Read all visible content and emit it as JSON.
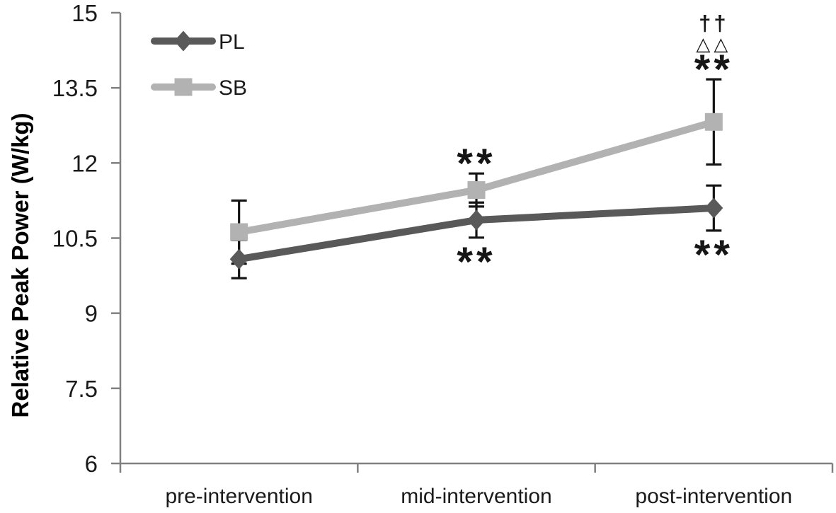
{
  "chart_data": {
    "type": "line",
    "title": "",
    "xlabel": "",
    "ylabel": "Relative Peak Power (W/kg)",
    "categories": [
      "pre-intervention",
      "mid-intervention",
      "post-intervention"
    ],
    "ylim": [
      6,
      15
    ],
    "y_ticks": [
      15,
      13.5,
      12,
      10.5,
      9,
      7.5,
      6
    ],
    "grid": false,
    "series": [
      {
        "name": "PL",
        "marker": "diamond",
        "color": "#595959",
        "values": [
          10.08,
          10.86,
          11.1
        ],
        "errors": [
          0.38,
          0.35,
          0.45
        ]
      },
      {
        "name": "SB",
        "marker": "square",
        "color": "#b2b2b2",
        "values": [
          10.62,
          11.46,
          12.82
        ],
        "errors": [
          0.63,
          0.33,
          0.85
        ]
      }
    ],
    "annotations": [
      {
        "category_index": 1,
        "series": "SB",
        "placement": "above",
        "symbols": [
          "**"
        ]
      },
      {
        "category_index": 1,
        "series": "PL",
        "placement": "below",
        "symbols": [
          "**"
        ]
      },
      {
        "category_index": 2,
        "series": "SB",
        "placement": "above",
        "symbols": [
          "††",
          "△△",
          "**"
        ]
      },
      {
        "category_index": 2,
        "series": "PL",
        "placement": "below",
        "symbols": [
          "**"
        ]
      }
    ],
    "legend": {
      "position": "top-left-inside",
      "entries": [
        "PL",
        "SB"
      ]
    },
    "colors": {
      "axis": "#808080",
      "error_bar": "#141414",
      "text": "#1a1a1a"
    }
  }
}
